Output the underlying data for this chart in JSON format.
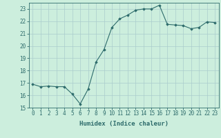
{
  "x": [
    0,
    1,
    2,
    3,
    4,
    5,
    6,
    7,
    8,
    9,
    10,
    11,
    12,
    13,
    14,
    15,
    16,
    17,
    18,
    19,
    20,
    21,
    22,
    23
  ],
  "y": [
    16.9,
    16.7,
    16.75,
    16.7,
    16.7,
    16.1,
    15.3,
    16.5,
    18.7,
    19.7,
    21.5,
    22.2,
    22.5,
    22.9,
    23.0,
    23.0,
    23.3,
    21.75,
    21.7,
    21.65,
    21.4,
    21.5,
    21.95,
    21.9
  ],
  "xlabel": "Humidex (Indice chaleur)",
  "ylim": [
    15,
    23.5
  ],
  "xlim": [
    -0.5,
    23.5
  ],
  "yticks": [
    15,
    16,
    17,
    18,
    19,
    20,
    21,
    22,
    23
  ],
  "xticks": [
    0,
    1,
    2,
    3,
    4,
    5,
    6,
    7,
    8,
    9,
    10,
    11,
    12,
    13,
    14,
    15,
    16,
    17,
    18,
    19,
    20,
    21,
    22,
    23
  ],
  "line_color": "#2d6b6b",
  "marker": "D",
  "marker_size": 1.8,
  "bg_color": "#cceedd",
  "grid_color": "#aacccc",
  "tick_color": "#2d6b6b",
  "label_color": "#2d6b6b",
  "font_size": 5.5,
  "xlabel_fontsize": 6.5
}
